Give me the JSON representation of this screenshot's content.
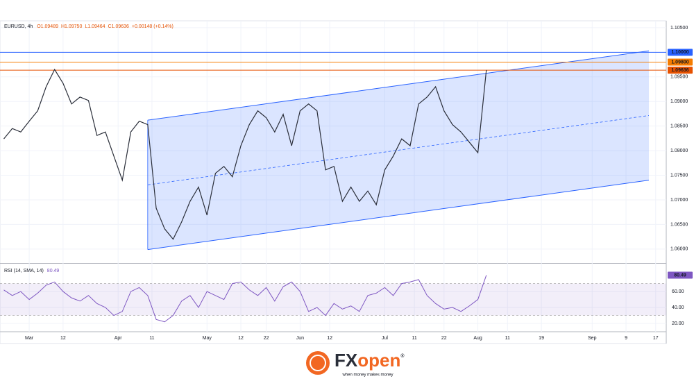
{
  "chart_data": {
    "type": "line",
    "symbol": "EURUSD, 4h",
    "ohlc": [
      "O1.09489",
      "H1.09750",
      "L1.09464",
      "C1.09636",
      "+0.00148 (+0.14%)"
    ],
    "color": "#2a2e39",
    "x": [
      -6,
      -4,
      -2,
      0,
      2,
      4,
      6,
      8,
      10,
      12,
      14,
      16,
      18,
      20,
      22,
      24,
      26,
      28,
      30,
      32,
      34,
      36,
      38,
      40,
      42,
      44,
      46,
      48,
      50,
      52,
      54,
      56,
      58,
      60,
      62,
      64,
      66,
      68,
      70,
      72,
      74,
      76,
      78,
      80,
      82,
      84,
      86,
      88,
      90,
      92,
      94,
      96,
      98,
      100,
      102,
      104,
      106,
      108
    ],
    "values": [
      1.0824,
      1.0845,
      1.0838,
      1.086,
      1.0881,
      1.093,
      1.0965,
      1.0937,
      1.0895,
      1.0909,
      1.0902,
      1.0831,
      1.0838,
      1.0789,
      1.074,
      1.0838,
      1.086,
      1.0853,
      1.0683,
      1.0641,
      1.062,
      1.0655,
      1.0697,
      1.0726,
      1.0669,
      1.0754,
      1.0768,
      1.0747,
      1.081,
      1.0853,
      1.0881,
      1.0867,
      1.0838,
      1.0874,
      1.081,
      1.0881,
      1.0895,
      1.0881,
      1.0761,
      1.0768,
      1.0697,
      1.0726,
      1.0697,
      1.0718,
      1.069,
      1.0761,
      1.0789,
      1.0824,
      1.081,
      1.0895,
      1.0909,
      1.093,
      1.0881,
      1.0853,
      1.0838,
      1.0817,
      1.0796,
      1.0964
    ],
    "xlim": [
      -6.9,
      150.5
    ],
    "xticks": [
      {
        "value": 0,
        "label": "Mar"
      },
      {
        "value": 8,
        "label": "12"
      },
      {
        "value": 21,
        "label": "Apr"
      },
      {
        "value": 29,
        "label": "11"
      },
      {
        "value": 42,
        "label": "May"
      },
      {
        "value": 50,
        "label": "12"
      },
      {
        "value": 56,
        "label": "22"
      },
      {
        "value": 64,
        "label": "Jun"
      },
      {
        "value": 71,
        "label": "12"
      },
      {
        "value": 84,
        "label": "Jul"
      },
      {
        "value": 91,
        "label": "11"
      },
      {
        "value": 98,
        "label": "22"
      },
      {
        "value": 106,
        "label": "Aug"
      },
      {
        "value": 113,
        "label": "11"
      },
      {
        "value": 121,
        "label": "19"
      },
      {
        "value": 133,
        "label": "Sep"
      },
      {
        "value": 141,
        "label": "9"
      },
      {
        "value": 148,
        "label": "17"
      }
    ],
    "ylim": [
      1.0573,
      1.1064
    ],
    "yticks": [
      {
        "value": 1.105,
        "label": "1.10500"
      },
      {
        "value": 1.095,
        "label": "1.09500"
      },
      {
        "value": 1.09,
        "label": "1.09000"
      },
      {
        "value": 1.085,
        "label": "1.08500"
      },
      {
        "value": 1.08,
        "label": "1.08000"
      },
      {
        "value": 1.075,
        "label": "1.07500"
      },
      {
        "value": 1.07,
        "label": "1.07000"
      },
      {
        "value": 1.065,
        "label": "1.06500"
      },
      {
        "value": 1.06,
        "label": "1.06000"
      }
    ],
    "grid": true,
    "levels": [
      {
        "value": 1.1,
        "label": "1.10000",
        "color": "#2962ff"
      },
      {
        "value": 1.098,
        "label": "1.09800",
        "color": "#f57c00"
      },
      {
        "value": 1.09636,
        "label": "1.09636",
        "color": "#e65100"
      }
    ],
    "channel": {
      "x": [
        28,
        146.4
      ],
      "upper": [
        1.0862,
        1.1003
      ],
      "lower": [
        1.0599,
        1.074
      ],
      "color": "#2962ff"
    },
    "rsi": {
      "label": "RSI (14, SMA, 14)",
      "value_label": "80.49",
      "color": "#7e57c2",
      "values": [
        62,
        55,
        60,
        50,
        58,
        68,
        72,
        60,
        52,
        48,
        55,
        45,
        40,
        30,
        35,
        60,
        65,
        55,
        25,
        22,
        30,
        48,
        55,
        40,
        60,
        55,
        50,
        70,
        72,
        62,
        55,
        65,
        48,
        66,
        72,
        60,
        35,
        40,
        30,
        45,
        38,
        42,
        35,
        55,
        58,
        65,
        55,
        70,
        72,
        75,
        55,
        45,
        38,
        40,
        35,
        42,
        50,
        80.49
      ],
      "ylim": [
        9.6,
        94
      ],
      "yticks": [
        {
          "value": 60,
          "label": "60.00"
        },
        {
          "value": 40,
          "label": "40.00"
        },
        {
          "value": 20,
          "label": "20.00"
        }
      ],
      "bands": [
        30,
        70
      ]
    }
  },
  "logo": {
    "part1": "FX",
    "part2": "open",
    "mark": "®",
    "tagline": "when money makes money"
  }
}
